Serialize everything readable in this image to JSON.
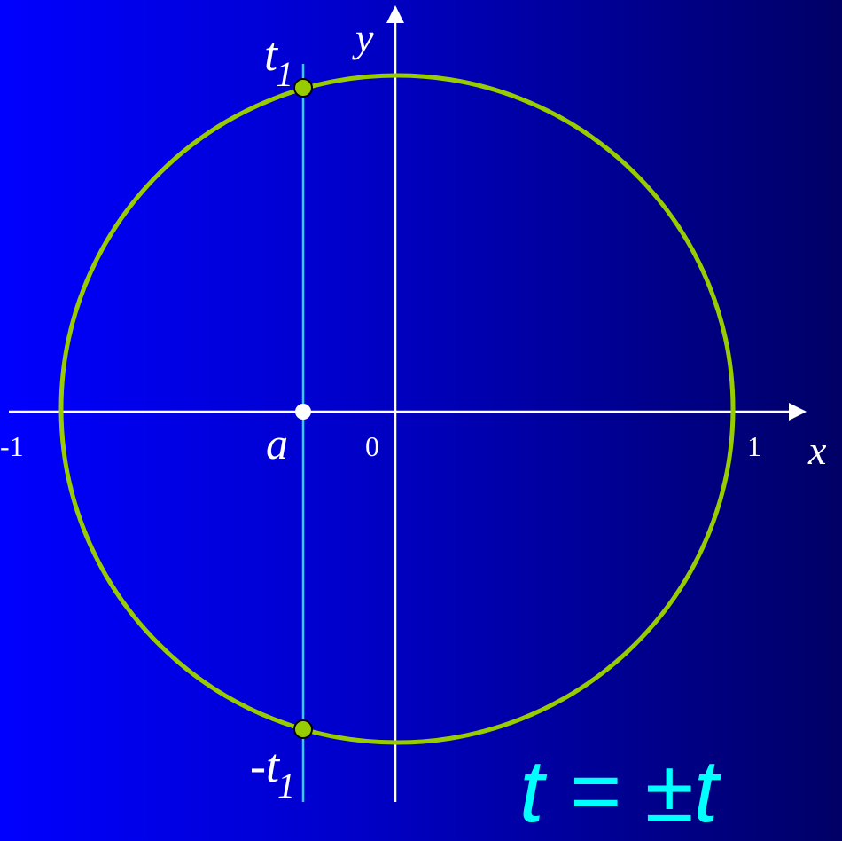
{
  "axes": {
    "x_label": "x",
    "y_label": "y",
    "tick_minus_one": "-1",
    "tick_zero": "0",
    "tick_one": "1"
  },
  "points": {
    "a_label": "a",
    "t1_main": "t",
    "t1_sub": "1",
    "neg_t1_main": "-t",
    "neg_t1_sub": "1"
  },
  "formula": {
    "text": "t = ±t"
  },
  "colors": {
    "circle": "#99cc00",
    "vertical_line": "#33ccff",
    "axes": "#ffffff",
    "formula": "#00ffff"
  }
}
